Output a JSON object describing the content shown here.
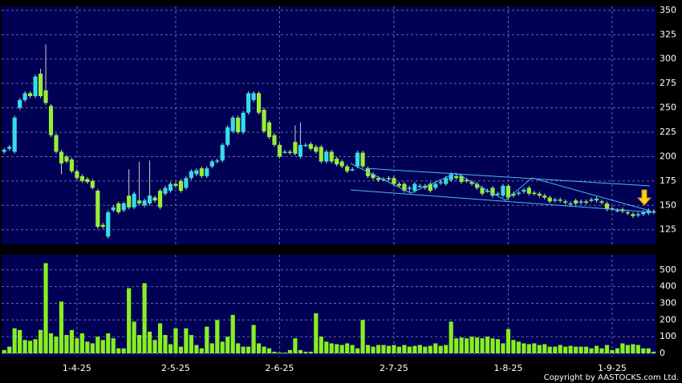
{
  "chart_data": {
    "type": "candlestick",
    "copyright": "Copyright by AASTOCKS.com Ltd.",
    "up_color": "#33dde8",
    "down_color": "#99ee33",
    "volume_color": "#88ee22",
    "grid": true,
    "xlim": [
      -0.5,
      125.5
    ],
    "xticks": [
      {
        "value": 14,
        "label": "1-4-25"
      },
      {
        "value": 33,
        "label": "2-5-25"
      },
      {
        "value": 53,
        "label": "2-6-25"
      },
      {
        "value": 75,
        "label": "2-7-25"
      },
      {
        "value": 97,
        "label": "1-8-25"
      },
      {
        "value": 117,
        "label": "1-9-25"
      }
    ],
    "ylim": [
      110,
      354
    ],
    "yticks": [
      125,
      150,
      175,
      200,
      225,
      250,
      275,
      300,
      325,
      350
    ],
    "volume_ylim": [
      0,
      590
    ],
    "volume_yticks": [
      0,
      100,
      200,
      300,
      400,
      500
    ],
    "open": [
      205,
      208,
      205,
      250,
      258,
      265,
      262,
      285,
      268,
      252,
      222,
      205,
      200,
      197,
      185,
      180,
      177,
      175,
      165,
      130,
      118,
      145,
      152,
      145,
      160,
      148,
      155,
      150,
      152,
      158,
      165,
      162,
      165,
      172,
      175,
      168,
      178,
      182,
      188,
      180,
      190,
      195,
      196,
      212,
      226,
      240,
      225,
      245,
      258,
      265,
      248,
      235,
      222,
      212,
      205,
      205,
      215,
      200,
      212,
      213,
      210,
      210,
      195,
      205,
      198,
      195,
      190,
      187,
      190,
      204,
      188,
      182,
      178,
      177,
      178,
      178,
      172,
      172,
      168,
      165,
      170,
      170,
      172,
      168,
      173,
      172,
      176,
      180,
      180,
      176,
      174,
      172,
      168,
      165,
      168,
      162,
      160,
      170,
      162,
      162,
      164,
      168,
      163,
      162,
      160,
      158,
      155,
      156,
      154,
      152,
      155,
      153,
      154,
      156,
      155,
      154,
      152,
      147,
      145,
      146,
      143,
      141,
      140,
      141,
      142,
      144
    ],
    "high": [
      209,
      212,
      242,
      260,
      267,
      267,
      284,
      290,
      315,
      254,
      224,
      207,
      202,
      199,
      187,
      182,
      179,
      177,
      167,
      132,
      145,
      150,
      154,
      154,
      187,
      164,
      195,
      157,
      196,
      160,
      167,
      170,
      174,
      174,
      177,
      180,
      187,
      188,
      190,
      190,
      197,
      198,
      214,
      232,
      242,
      242,
      247,
      267,
      267,
      267,
      250,
      237,
      224,
      214,
      207,
      207,
      232,
      235,
      214,
      215,
      212,
      212,
      207,
      207,
      200,
      197,
      192,
      189,
      206,
      206,
      190,
      184,
      180,
      179,
      180,
      180,
      174,
      174,
      170,
      174,
      172,
      172,
      174,
      174,
      176,
      180,
      184,
      182,
      182,
      178,
      176,
      174,
      170,
      167,
      170,
      164,
      172,
      172,
      164,
      165,
      168,
      170,
      165,
      164,
      162,
      160,
      158,
      158,
      156,
      154,
      157,
      156,
      156,
      158,
      159,
      156,
      154,
      149,
      147,
      148,
      145,
      143,
      143,
      145,
      147,
      146
    ],
    "low": [
      203,
      206,
      203,
      248,
      256,
      260,
      260,
      260,
      253,
      220,
      203,
      182,
      193,
      183,
      176,
      173,
      172,
      166,
      126,
      126,
      116,
      143,
      141,
      143,
      146,
      146,
      150,
      148,
      150,
      153,
      146,
      160,
      163,
      168,
      163,
      166,
      176,
      180,
      178,
      178,
      188,
      193,
      194,
      210,
      224,
      223,
      223,
      243,
      256,
      243,
      224,
      218,
      210,
      198,
      203,
      202,
      201,
      198,
      210,
      206,
      203,
      193,
      193,
      193,
      190,
      188,
      183,
      185,
      188,
      188,
      178,
      176,
      174,
      175,
      175,
      170,
      168,
      163,
      163,
      163,
      168,
      166,
      163,
      166,
      171,
      170,
      174,
      176,
      172,
      173,
      170,
      166,
      160,
      163,
      158,
      160,
      158,
      156,
      158,
      160,
      162,
      160,
      160,
      158,
      156,
      152,
      153,
      153,
      151,
      150,
      150,
      151,
      151,
      153,
      153,
      151,
      144,
      144,
      143,
      142,
      140,
      137,
      138,
      139,
      140,
      141
    ],
    "close": [
      207,
      210,
      240,
      258,
      265,
      262,
      282,
      262,
      255,
      222,
      205,
      193,
      195,
      185,
      178,
      175,
      174,
      168,
      128,
      128,
      143,
      148,
      143,
      152,
      148,
      162,
      152,
      155,
      160,
      155,
      148,
      168,
      172,
      170,
      165,
      178,
      185,
      186,
      180,
      188,
      195,
      196,
      212,
      230,
      240,
      225,
      245,
      265,
      265,
      245,
      226,
      220,
      212,
      200,
      205,
      204,
      203,
      212,
      212,
      208,
      205,
      195,
      205,
      195,
      192,
      190,
      185,
      187,
      204,
      190,
      180,
      178,
      176,
      177,
      177,
      172,
      170,
      165,
      168,
      172,
      170,
      168,
      165,
      172,
      174,
      178,
      182,
      178,
      174,
      175,
      172,
      168,
      162,
      165,
      160,
      162,
      170,
      158,
      160,
      163,
      166,
      162,
      162,
      160,
      158,
      154,
      156,
      155,
      153,
      152,
      152,
      154,
      153,
      155,
      157,
      153,
      146,
      146,
      145,
      144,
      142,
      139,
      141,
      143,
      145,
      143
    ],
    "volume": [
      20,
      40,
      150,
      140,
      80,
      75,
      85,
      140,
      540,
      120,
      100,
      310,
      110,
      140,
      90,
      120,
      70,
      60,
      100,
      80,
      120,
      90,
      30,
      30,
      390,
      190,
      110,
      420,
      130,
      80,
      180,
      110,
      55,
      150,
      40,
      150,
      110,
      50,
      30,
      160,
      60,
      200,
      70,
      100,
      230,
      60,
      40,
      40,
      170,
      60,
      40,
      30,
      10,
      5,
      5,
      20,
      90,
      20,
      10,
      10,
      240,
      100,
      70,
      60,
      55,
      50,
      60,
      50,
      30,
      200,
      50,
      40,
      50,
      50,
      45,
      50,
      40,
      50,
      40,
      45,
      50,
      40,
      45,
      60,
      45,
      50,
      190,
      90,
      95,
      90,
      100,
      95,
      90,
      100,
      90,
      85,
      60,
      145,
      80,
      70,
      60,
      55,
      60,
      50,
      55,
      40,
      40,
      50,
      40,
      45,
      40,
      40,
      40,
      30,
      45,
      30,
      50,
      20,
      30,
      60,
      50,
      55,
      50,
      30,
      30,
      10
    ]
  }
}
